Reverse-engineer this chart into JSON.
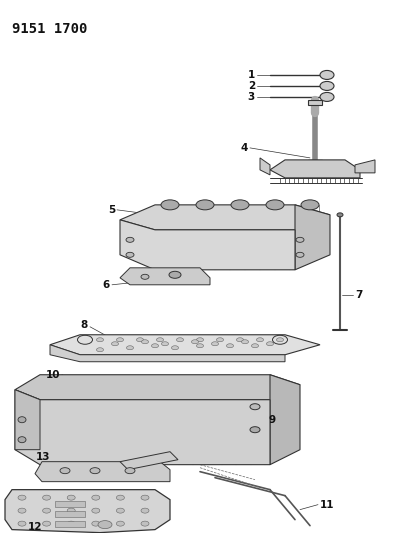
{
  "title": "9151 1700",
  "bg_color": "#ffffff",
  "line_color": "#333333",
  "label_color": "#111111",
  "title_fontsize": 10,
  "label_fontsize": 7.5
}
